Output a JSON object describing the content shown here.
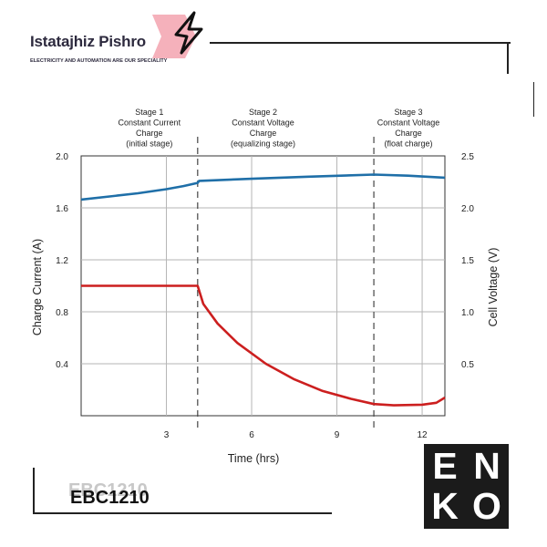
{
  "brand": {
    "name": "Istatajhiz Pishro",
    "tagline": "ELECTRICITY AND AUTOMATION ARE OUR SPECIALITY"
  },
  "product": {
    "model": "EBC1210"
  },
  "enko_logo": {
    "letters": [
      "E",
      "N",
      "K",
      "O"
    ]
  },
  "chart_data": {
    "type": "line",
    "xlabel": "Time (hrs)",
    "ylabel_left": "Charge Current (A)",
    "ylabel_right": "Cell Voltage (V)",
    "xlim": [
      0,
      12.8
    ],
    "ylim_left": [
      0,
      2.0
    ],
    "ylim_right": [
      0,
      2.5
    ],
    "x_ticks": [
      3,
      6,
      9,
      12
    ],
    "y_ticks_left": [
      0.4,
      0.8,
      1.2,
      1.6,
      2.0
    ],
    "y_ticks_right": [
      0.5,
      1.0,
      1.5,
      2.0,
      2.5
    ],
    "grid": true,
    "stage_boundaries": [
      4.1,
      10.3
    ],
    "stages": [
      {
        "lines": [
          "Stage 1",
          "Constant Current",
          "Charge",
          "(initial stage)"
        ],
        "x_center": 2.4
      },
      {
        "lines": [
          "Stage 2",
          "Constant Voltage",
          "Charge",
          "(equalizing stage)"
        ],
        "x_center": 6.4
      },
      {
        "lines": [
          "Stage 3",
          "Constant Voltage",
          "Charge",
          "(float charge)"
        ],
        "x_center": 12.3
      }
    ],
    "series": [
      {
        "axis": "right",
        "color": "#1f6fa8",
        "x": [
          0,
          1,
          2,
          3,
          3.6,
          4.1,
          4.15,
          6,
          8,
          10.3,
          11.5,
          12.8
        ],
        "values": [
          2.08,
          2.11,
          2.14,
          2.18,
          2.21,
          2.24,
          2.26,
          2.28,
          2.3,
          2.32,
          2.31,
          2.29
        ]
      },
      {
        "axis": "left",
        "color": "#cc1f1f",
        "x": [
          0,
          4.1,
          4.3,
          4.8,
          5.5,
          6.5,
          7.5,
          8.5,
          9.5,
          10.3,
          11.0,
          12.0,
          12.5,
          12.8
        ],
        "values": [
          1.0,
          1.0,
          0.86,
          0.71,
          0.56,
          0.4,
          0.28,
          0.19,
          0.13,
          0.09,
          0.08,
          0.085,
          0.1,
          0.14
        ]
      }
    ]
  }
}
